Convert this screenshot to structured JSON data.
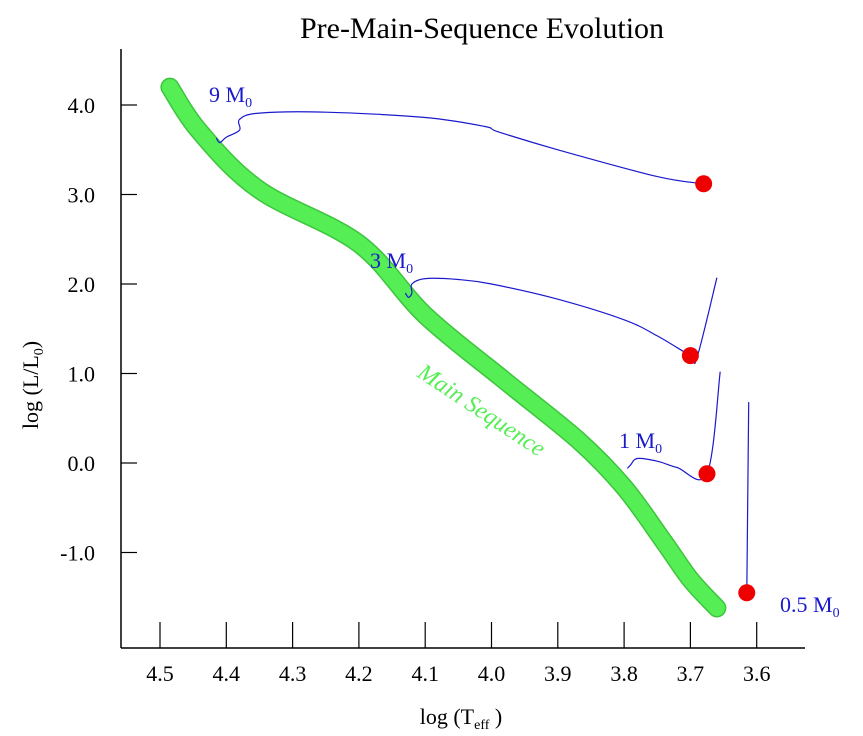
{
  "chart_data": {
    "type": "line",
    "title": "Pre-Main-Sequence Evolution",
    "xlabel": {
      "main": "log (T",
      "sub": "eff",
      "tail": " )"
    },
    "ylabel": {
      "main": "log (L/L",
      "sub": "0",
      "tail": ")"
    },
    "x_inverted": true,
    "xlim": [
      4.5,
      3.6
    ],
    "ylim": [
      -1.5,
      4.0
    ],
    "x_ticks": [
      "4.5",
      "4.4",
      "4.3",
      "4.2",
      "4.1",
      "4.0",
      "3.9",
      "3.8",
      "3.7",
      "3.6"
    ],
    "y_ticks": [
      "4.0",
      "3.0",
      "2.0",
      "1.0",
      "0.0",
      "-1.0"
    ],
    "grid": false,
    "colors": {
      "tracks": "#1a1acc",
      "main_sequence": "#55ee55",
      "endpoints": "#ee0000",
      "axes": "#000000"
    },
    "main_sequence": {
      "label": "Main Sequence",
      "points": [
        [
          4.485,
          4.2
        ],
        [
          4.44,
          3.7
        ],
        [
          4.35,
          3.05
        ],
        [
          4.2,
          2.45
        ],
        [
          4.1,
          1.65
        ],
        [
          3.98,
          0.92
        ],
        [
          3.87,
          0.26
        ],
        [
          3.8,
          -0.27
        ],
        [
          3.74,
          -0.88
        ],
        [
          3.7,
          -1.3
        ],
        [
          3.66,
          -1.62
        ]
      ]
    },
    "series": [
      {
        "name": "9 M",
        "name_sub": "0",
        "points": [
          [
            3.68,
            3.12
          ],
          [
            3.75,
            3.2
          ],
          [
            3.9,
            3.5
          ],
          [
            3.99,
            3.7
          ],
          [
            4.01,
            3.76
          ],
          [
            4.1,
            3.86
          ],
          [
            4.25,
            3.92
          ],
          [
            4.35,
            3.91
          ],
          [
            4.38,
            3.84
          ],
          [
            4.38,
            3.72
          ],
          [
            4.4,
            3.64
          ],
          [
            4.41,
            3.58
          ],
          [
            4.415,
            3.63
          ]
        ],
        "endpoint": [
          3.68,
          3.12
        ]
      },
      {
        "name": "3 M",
        "name_sub": "0",
        "points": [
          [
            3.66,
            2.07
          ],
          [
            3.69,
            1.18
          ],
          [
            3.7,
            1.2
          ],
          [
            3.75,
            1.42
          ],
          [
            3.8,
            1.6
          ],
          [
            3.9,
            1.83
          ],
          [
            4.0,
            2.0
          ],
          [
            4.05,
            2.05
          ],
          [
            4.1,
            2.06
          ],
          [
            4.12,
            2.0
          ],
          [
            4.12,
            1.9
          ],
          [
            4.125,
            1.85
          ],
          [
            4.13,
            1.9
          ]
        ],
        "endpoint": [
          3.7,
          1.2
        ]
      },
      {
        "name": "1 M",
        "name_sub": "0",
        "points": [
          [
            3.655,
            1.02
          ],
          [
            3.675,
            -0.12
          ],
          [
            3.72,
            -0.05
          ],
          [
            3.75,
            0.02
          ],
          [
            3.78,
            0.05
          ],
          [
            3.79,
            -0.02
          ],
          [
            3.795,
            -0.06
          ]
        ],
        "endpoint": [
          3.675,
          -0.12
        ]
      },
      {
        "name": "0.5 M",
        "name_sub": "0",
        "points": [
          [
            3.612,
            0.68
          ],
          [
            3.615,
            -1.45
          ]
        ],
        "endpoint": [
          3.615,
          -1.45
        ]
      }
    ]
  }
}
